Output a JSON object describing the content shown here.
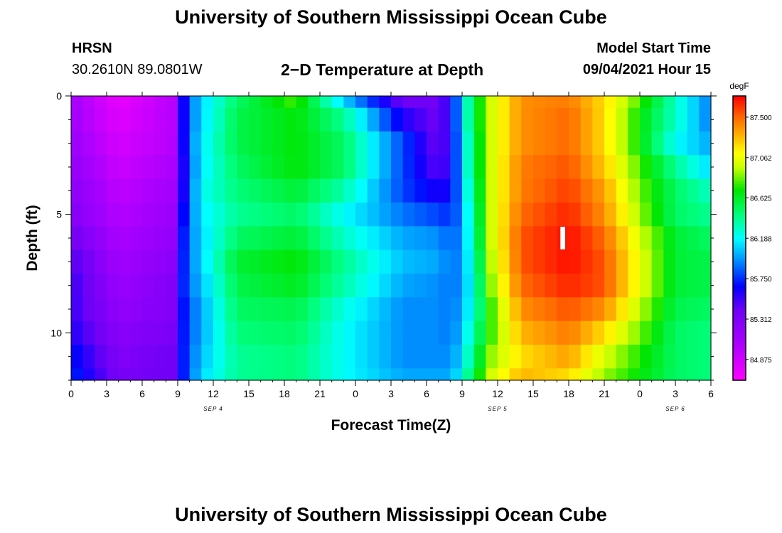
{
  "header": {
    "title": "University of Southern Mississippi Ocean Cube",
    "station": "HRSN",
    "coords": "30.2610N  89.0801W",
    "plot_title": "2−D Temperature at Depth",
    "model_start_label": "Model Start Time",
    "model_start_value": "09/04/2021 Hour 15"
  },
  "footer": {
    "title": "University of Southern Mississippi Ocean Cube"
  },
  "chart_data": {
    "type": "heatmap",
    "title": "2−D Temperature at Depth",
    "xlabel": "Forecast Time(Z)",
    "ylabel": "Depth (ft)",
    "x_start_hour": 0,
    "x_end_hour": 54,
    "x_step_hours": 1,
    "x_tick_hours": [
      0,
      3,
      6,
      9,
      12,
      15,
      18,
      21,
      24,
      27,
      30,
      33,
      36,
      39,
      42,
      45,
      48,
      51,
      54
    ],
    "x_tick_labels": [
      "0",
      "3",
      "6",
      "9",
      "12",
      "15",
      "18",
      "21",
      "0",
      "3",
      "6",
      "9",
      "12",
      "15",
      "18",
      "21",
      "0",
      "3",
      "6"
    ],
    "date_labels": [
      {
        "hour": 12,
        "text": "SEP 4"
      },
      {
        "hour": 36,
        "text": "SEP 5"
      },
      {
        "hour": 51,
        "text": "SEP 6"
      }
    ],
    "depth_levels_ft": [
      0,
      1,
      2,
      3,
      4,
      5,
      6,
      7,
      8,
      9,
      10,
      11,
      12
    ],
    "y_range": [
      0,
      12
    ],
    "y_ticks": [
      0,
      5,
      10
    ],
    "colorbar": {
      "unit": "degF",
      "min": 84.65,
      "max": 87.73,
      "tick_values": [
        84.875,
        85.312,
        85.75,
        86.188,
        86.625,
        87.062,
        87.5
      ],
      "tick_labels": [
        "84.875",
        "85.312",
        "85.750",
        "86.188",
        "86.625",
        "87.062",
        "87.500"
      ]
    },
    "anchor_hours": [
      0,
      4,
      8.7,
      9.7,
      11,
      14,
      19,
      23,
      28,
      31,
      32,
      33,
      34,
      35.5,
      38,
      42,
      45,
      48,
      51,
      54
    ],
    "anchor_values_degF": [
      [
        85.1,
        84.75,
        85.0,
        85.8,
        86.1,
        86.5,
        86.8,
        86.1,
        85.4,
        85.4,
        85.6,
        86.1,
        86.6,
        87.0,
        87.4,
        87.45,
        87.2,
        86.8,
        86.3,
        85.9
      ],
      [
        85.1,
        84.8,
        85.0,
        85.8,
        86.1,
        86.55,
        86.7,
        86.4,
        85.6,
        85.4,
        85.6,
        86.1,
        86.6,
        87.0,
        87.4,
        87.5,
        87.2,
        86.7,
        86.3,
        85.9
      ],
      [
        85.15,
        84.85,
        85.0,
        85.8,
        86.15,
        86.55,
        86.7,
        86.5,
        85.8,
        85.4,
        85.6,
        86.05,
        86.55,
        87.0,
        87.4,
        87.5,
        87.2,
        86.7,
        86.2,
        86.0
      ],
      [
        85.2,
        84.9,
        85.05,
        85.75,
        86.15,
        86.5,
        86.7,
        86.5,
        85.8,
        85.45,
        85.6,
        86.05,
        86.55,
        87.0,
        87.45,
        87.55,
        87.25,
        86.8,
        86.4,
        86.1
      ],
      [
        85.25,
        84.95,
        85.1,
        85.75,
        86.2,
        86.45,
        86.6,
        86.35,
        85.8,
        85.6,
        85.65,
        86.0,
        86.5,
        87.0,
        87.45,
        87.6,
        87.35,
        86.85,
        86.5,
        86.3
      ],
      [
        85.3,
        85.0,
        85.15,
        85.8,
        86.15,
        86.4,
        86.5,
        86.2,
        85.9,
        85.8,
        85.75,
        85.95,
        86.45,
        87.0,
        87.5,
        87.65,
        87.4,
        86.9,
        86.5,
        86.4
      ],
      [
        85.4,
        85.05,
        85.2,
        85.85,
        86.1,
        86.5,
        86.6,
        86.3,
        86.0,
        85.95,
        85.85,
        85.95,
        86.4,
        87.0,
        87.55,
        87.7,
        87.5,
        87.0,
        86.6,
        86.5
      ],
      [
        85.5,
        85.1,
        85.25,
        85.85,
        86.1,
        86.6,
        86.7,
        86.4,
        86.05,
        86.0,
        85.9,
        85.95,
        86.35,
        86.95,
        87.55,
        87.7,
        87.55,
        87.05,
        86.6,
        86.55
      ],
      [
        85.55,
        85.15,
        85.3,
        85.85,
        86.05,
        86.55,
        86.65,
        86.35,
        86.0,
        85.95,
        85.9,
        85.95,
        86.3,
        86.9,
        87.5,
        87.65,
        87.55,
        87.05,
        86.6,
        86.55
      ],
      [
        85.55,
        85.2,
        85.3,
        85.8,
        86.0,
        86.5,
        86.55,
        86.25,
        85.95,
        85.95,
        85.9,
        86.0,
        86.3,
        86.8,
        87.4,
        87.55,
        87.4,
        86.95,
        86.55,
        86.5
      ],
      [
        85.6,
        85.25,
        85.35,
        85.8,
        86.0,
        86.45,
        86.5,
        86.2,
        85.95,
        85.95,
        85.9,
        86.05,
        86.4,
        86.8,
        87.3,
        87.45,
        87.2,
        86.85,
        86.5,
        86.45
      ],
      [
        85.7,
        85.3,
        85.4,
        85.8,
        86.05,
        86.4,
        86.45,
        86.2,
        85.95,
        85.95,
        85.95,
        86.1,
        86.5,
        86.9,
        87.2,
        87.35,
        87.0,
        86.75,
        86.5,
        86.45
      ],
      [
        85.75,
        85.35,
        85.4,
        85.8,
        86.1,
        86.4,
        86.45,
        86.2,
        86.0,
        86.0,
        86.0,
        86.2,
        86.6,
        87.0,
        87.3,
        87.2,
        86.9,
        86.7,
        86.5,
        86.45
      ]
    ],
    "annotation": {
      "text": "I",
      "hour": 41.5,
      "depth_ft": 6
    }
  }
}
